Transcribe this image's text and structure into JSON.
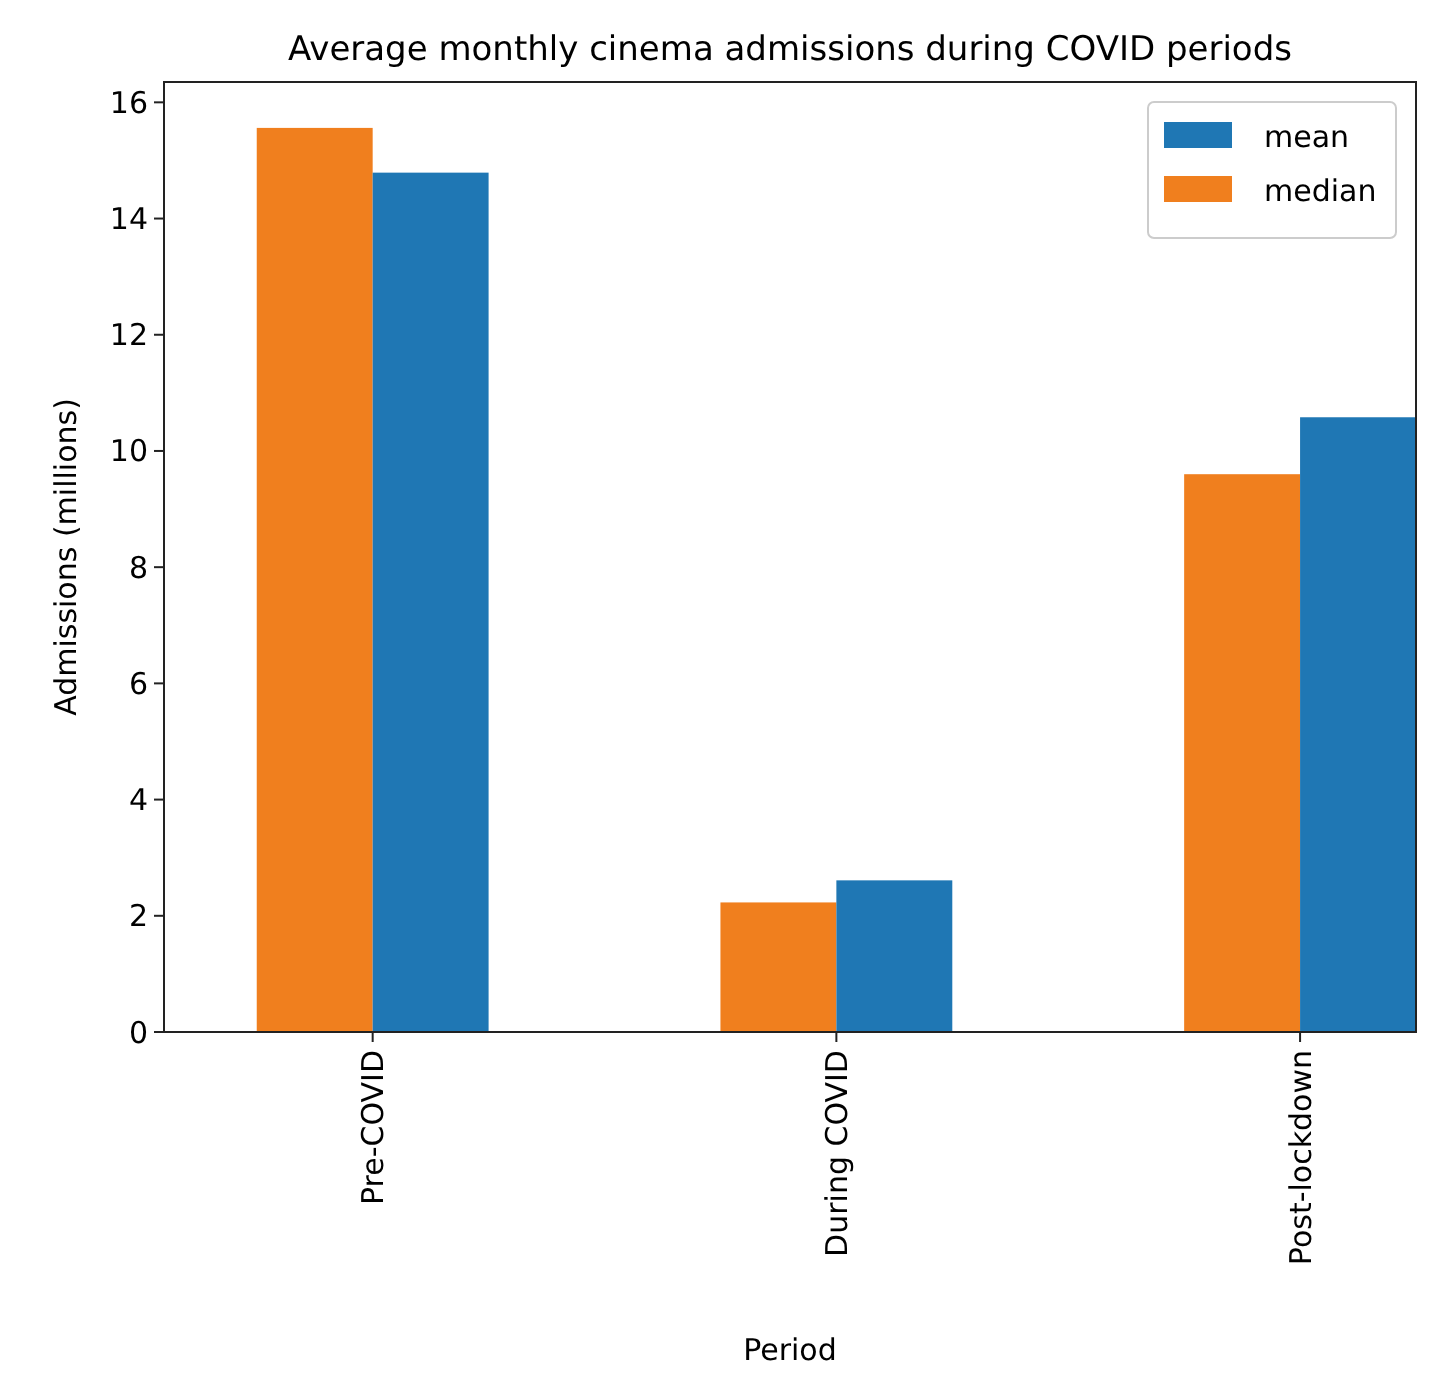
{
  "chart_data": {
    "type": "bar",
    "title": "Average monthly cinema admissions during COVID periods",
    "xlabel": "Period",
    "ylabel": "Admissions (millions)",
    "categories": [
      "Pre-COVID",
      "During COVID",
      "Post-lockdown"
    ],
    "series": [
      {
        "name": "median",
        "color": "#f07f1e",
        "values": [
          15.56,
          2.23,
          9.6
        ]
      },
      {
        "name": "mean",
        "color": "#1f77b4",
        "values": [
          14.79,
          2.61,
          10.58
        ]
      }
    ],
    "ylim": [
      0,
      16.35
    ],
    "yticks": [
      0,
      2,
      4,
      6,
      8,
      10,
      12,
      14,
      16
    ],
    "grid": false,
    "legend": "top right"
  }
}
